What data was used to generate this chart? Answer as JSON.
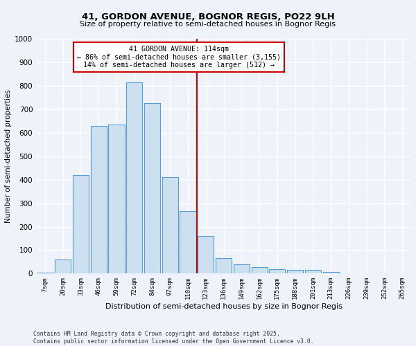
{
  "title1": "41, GORDON AVENUE, BOGNOR REGIS, PO22 9LH",
  "title2": "Size of property relative to semi-detached houses in Bognor Regis",
  "xlabel": "Distribution of semi-detached houses by size in Bognor Regis",
  "ylabel": "Number of semi-detached properties",
  "categories": [
    "7sqm",
    "20sqm",
    "33sqm",
    "46sqm",
    "59sqm",
    "72sqm",
    "84sqm",
    "97sqm",
    "110sqm",
    "123sqm",
    "136sqm",
    "149sqm",
    "162sqm",
    "175sqm",
    "188sqm",
    "201sqm",
    "213sqm",
    "226sqm",
    "239sqm",
    "252sqm",
    "265sqm"
  ],
  "values": [
    5,
    60,
    420,
    630,
    635,
    815,
    725,
    410,
    265,
    160,
    65,
    40,
    28,
    20,
    15,
    15,
    8,
    2,
    2,
    1,
    0
  ],
  "bar_color": "#cce0f0",
  "bar_edge_color": "#5b9bd5",
  "vline_color": "#cc0000",
  "annotation_text": "41 GORDON AVENUE: 114sqm\n← 86% of semi-detached houses are smaller (3,155)\n14% of semi-detached houses are larger (512) →",
  "annotation_box_color": "#ffffff",
  "annotation_box_edge": "#cc0000",
  "ylim": [
    0,
    1000
  ],
  "yticks": [
    0,
    100,
    200,
    300,
    400,
    500,
    600,
    700,
    800,
    900,
    1000
  ],
  "footer": "Contains HM Land Registry data © Crown copyright and database right 2025.\nContains public sector information licensed under the Open Government Licence v3.0.",
  "bg_color": "#eef2fa",
  "plot_bg_color": "#eef2fa",
  "grid_color": "#ffffff"
}
